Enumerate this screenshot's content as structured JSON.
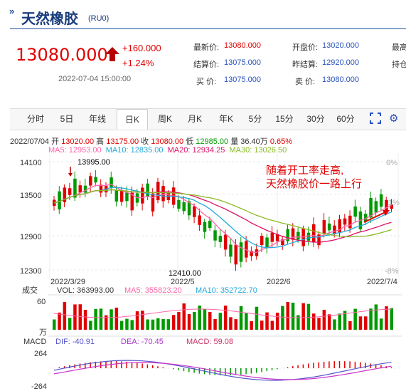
{
  "header": {
    "icon": "double-chevron-icon",
    "title": "天然橡胶",
    "code": "(RU0)",
    "price": "13080.000",
    "change": "+160.000",
    "change_pct": "+1.24%",
    "datetime": "2022-07-04 15:00:00"
  },
  "quote": {
    "latest_label": "最新价:",
    "latest": "13080.000",
    "open_label": "开盘价:",
    "open": "13020.000",
    "high_label": "最高",
    "settle_label": "结算价:",
    "settle": "13075.000",
    "prev_settle_label": "昨结算:",
    "prev_settle": "12920.000",
    "hold_label": "持仓",
    "buy_label": "买  价:",
    "buy": "13075.000",
    "sell_label": "卖  价:",
    "sell": "13080.000"
  },
  "tabs": [
    "分时",
    "5日",
    "年线",
    "日K",
    "周K",
    "月K",
    "年K",
    "5分",
    "15分",
    "30分",
    "60分"
  ],
  "active_tab": "日K",
  "icons": {
    "fullscreen": "fullscreen-icon",
    "settings": "gear-icon"
  },
  "colors": {
    "up": "#e00000",
    "down": "#009900",
    "accent": "#2a52be",
    "ma5": "#ff66aa",
    "ma10": "#22aadd",
    "ma20": "#dd1166",
    "ma30": "#88bb22"
  },
  "info": {
    "date": "2022/07/04",
    "open_label": "开",
    "open": "13020.00",
    "high_label": "高",
    "high": "13175.00",
    "close_label": "收",
    "close": "13080.00",
    "low_label": "低",
    "low": "12985.00",
    "vol_label": "量",
    "vol": "36.40万",
    "pct": "0.65%",
    "ma5": "MA5: 12953.00",
    "ma10": "MA10: 12835.00",
    "ma20": "MA20: 12934.25",
    "ma30": "MA30: 13026.50"
  },
  "chart_data": {
    "type": "candlestick",
    "y_ticks": [
      "14100",
      "13500",
      "12900",
      "12300"
    ],
    "right_ticks": [
      "6%",
      "1%",
      "-8%"
    ],
    "x_labels": [
      "2022/3/29",
      "2022/5",
      "2022/6",
      "2022/7/4"
    ],
    "ylim": [
      12300,
      14100
    ],
    "max_label": "13995.00",
    "min_label": "12410.00",
    "annotation": [
      "随着开工率走高,",
      "天然橡胶价一路上行"
    ],
    "volume": {
      "title": "成交",
      "vol": "VOL: 363993.00",
      "ma5": "MA5: 355823.20",
      "ma10": "MA10: 352722.70",
      "tick_top": "60",
      "unit": "万"
    },
    "macd": {
      "title": "MACD",
      "dif": "DIF: -40.91",
      "dea": "DEA: -70.45",
      "macd": "MACD: 59.08",
      "tick_top": "264",
      "tick_bottom": "-264"
    }
  }
}
